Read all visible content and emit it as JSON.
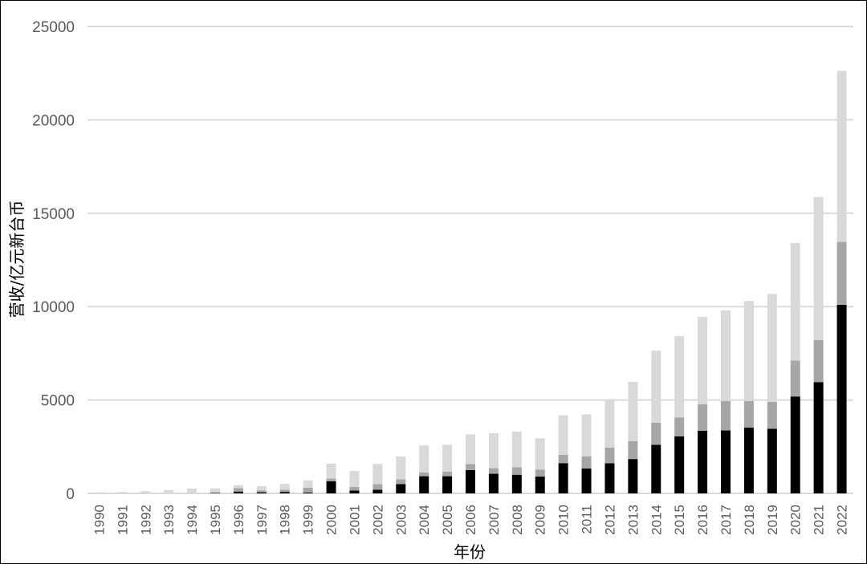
{
  "chart_data": {
    "type": "bar",
    "stacked": true,
    "title": "",
    "xlabel": "年份",
    "ylabel": "营收/亿元新台币",
    "ylim": [
      0,
      25000
    ],
    "yticks": [
      0,
      5000,
      10000,
      15000,
      20000,
      25000
    ],
    "grid": true,
    "categories": [
      "1990",
      "1991",
      "1992",
      "1993",
      "1994",
      "1995",
      "1996",
      "1997",
      "1998",
      "1999",
      "2000",
      "2001",
      "2002",
      "2003",
      "2004",
      "2005",
      "2006",
      "2007",
      "2008",
      "2009",
      "2010",
      "2011",
      "2012",
      "2013",
      "2014",
      "2015",
      "2016",
      "2017",
      "2018",
      "2019",
      "2020",
      "2021",
      "2022"
    ],
    "series": [
      {
        "color": "#000000",
        "values": [
          0,
          0,
          0,
          0,
          0,
          20,
          100,
          60,
          80,
          50,
          650,
          150,
          200,
          500,
          920,
          920,
          1250,
          1050,
          1000,
          900,
          1620,
          1330,
          1610,
          1840,
          2600,
          3050,
          3350,
          3370,
          3520,
          3460,
          5190,
          5960,
          10100
        ]
      },
      {
        "color": "#a6a6a6",
        "values": [
          0,
          0,
          0,
          0,
          0,
          40,
          180,
          90,
          120,
          260,
          150,
          200,
          300,
          250,
          200,
          250,
          320,
          300,
          400,
          380,
          450,
          650,
          840,
          960,
          1180,
          1020,
          1420,
          1580,
          1430,
          1440,
          1930,
          2250,
          3370
        ]
      },
      {
        "color": "#d9d9d9",
        "values": [
          60,
          80,
          120,
          180,
          260,
          210,
          160,
          240,
          310,
          380,
          800,
          850,
          1080,
          1230,
          1450,
          1430,
          1590,
          1870,
          1910,
          1670,
          2110,
          2250,
          2600,
          3170,
          3870,
          4350,
          4680,
          4850,
          5350,
          5780,
          6290,
          7650,
          9160
        ]
      }
    ]
  }
}
